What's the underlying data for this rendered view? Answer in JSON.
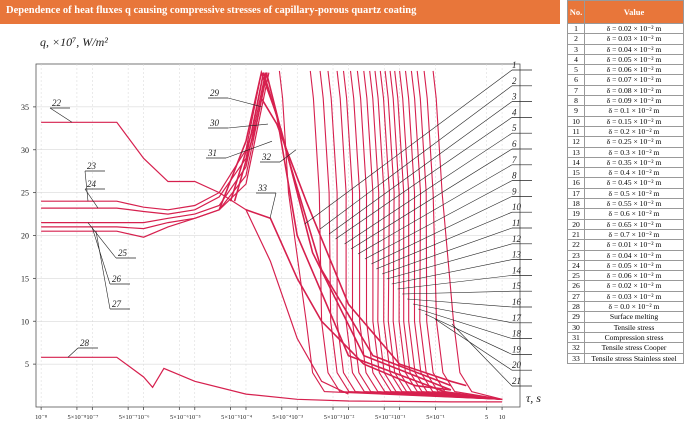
{
  "header": {
    "title": "Dependence of heat fluxes q causing compressive stresses of capillary-porous quartz coating",
    "col_no": "No.",
    "col_value": "Value"
  },
  "legend_rows": [
    {
      "no": "1",
      "value": "δ = 0.02 × 10⁻² m"
    },
    {
      "no": "2",
      "value": "δ = 0.03 × 10⁻² m"
    },
    {
      "no": "3",
      "value": "δ = 0.04 × 10⁻² m"
    },
    {
      "no": "4",
      "value": "δ = 0.05 × 10⁻² m"
    },
    {
      "no": "5",
      "value": "δ = 0.06 × 10⁻² m"
    },
    {
      "no": "6",
      "value": "δ = 0.07 × 10⁻² m"
    },
    {
      "no": "7",
      "value": "δ = 0.08 × 10⁻² m"
    },
    {
      "no": "8",
      "value": "δ = 0.09 × 10⁻² m"
    },
    {
      "no": "9",
      "value": "δ = 0.1 × 10⁻² m"
    },
    {
      "no": "10",
      "value": "δ = 0.15 × 10⁻² m"
    },
    {
      "no": "11",
      "value": "δ = 0.2 × 10⁻² m"
    },
    {
      "no": "12",
      "value": "δ = 0.25 × 10⁻² m"
    },
    {
      "no": "13",
      "value": "δ = 0.3 × 10⁻² m"
    },
    {
      "no": "14",
      "value": "δ = 0.35 × 10⁻² m"
    },
    {
      "no": "15",
      "value": "δ = 0.4 × 10⁻² m"
    },
    {
      "no": "16",
      "value": "δ = 0.45 × 10⁻² m"
    },
    {
      "no": "17",
      "value": "δ = 0.5 × 10⁻² m"
    },
    {
      "no": "18",
      "value": "δ = 0.55 × 10⁻² m"
    },
    {
      "no": "19",
      "value": "δ = 0.6 × 10⁻² m"
    },
    {
      "no": "20",
      "value": "δ = 0.65 × 10⁻² m"
    },
    {
      "no": "21",
      "value": "δ = 0.7 × 10⁻² m"
    },
    {
      "no": "22",
      "value": "δ = 0.01 × 10⁻² m"
    },
    {
      "no": "23",
      "value": "δ = 0.04 × 10⁻² m"
    },
    {
      "no": "24",
      "value": "δ = 0.05 × 10⁻² m"
    },
    {
      "no": "25",
      "value": "δ = 0.06 × 10⁻² m"
    },
    {
      "no": "26",
      "value": "δ = 0.02 × 10⁻² m"
    },
    {
      "no": "27",
      "value": "δ = 0.03 × 10⁻² m"
    },
    {
      "no": "28",
      "value": "δ = 0.0 × 10⁻² m"
    },
    {
      "no": "29",
      "value": "Surface melting"
    },
    {
      "no": "30",
      "value": "Tensile stress"
    },
    {
      "no": "31",
      "value": "Compression stress"
    },
    {
      "no": "32",
      "value": "Tensile stress Cooper"
    },
    {
      "no": "33",
      "value": "Tensile stress Stainless steel"
    }
  ],
  "chart_data": {
    "type": "line",
    "ylabel": "q, ×10⁷, W/m²",
    "xlabel": "τ, s",
    "x_scale": "log",
    "ylim": [
      0,
      40
    ],
    "yticks": [
      5,
      10,
      15,
      20,
      25,
      30,
      35
    ],
    "xticks": [
      "10⁻⁸",
      "5×10⁻⁸",
      "10⁻⁷",
      "5×10⁻⁷",
      "10⁻⁶",
      "5×10⁻⁶",
      "10⁻⁵",
      "5×10⁻⁵",
      "10⁻⁴",
      "5×10⁻⁴",
      "10⁻³",
      "5×10⁻³",
      "10⁻²",
      "5×10⁻²",
      "10⁻¹",
      "5×10⁻¹",
      "5",
      "10"
    ],
    "grid": true,
    "line_color": "#d6204e",
    "family_1_21": [
      {
        "label": "1",
        "peak_x": 0.00045,
        "tail_x": 0.002
      },
      {
        "label": "2",
        "peak_x": 0.0018,
        "tail_x": 0.004
      },
      {
        "label": "3",
        "peak_x": 0.0028,
        "tail_x": 0.006
      },
      {
        "label": "4",
        "peak_x": 0.004,
        "tail_x": 0.008
      },
      {
        "label": "5",
        "peak_x": 0.006,
        "tail_x": 0.012
      },
      {
        "label": "6",
        "peak_x": 0.008,
        "tail_x": 0.016
      },
      {
        "label": "7",
        "peak_x": 0.011,
        "tail_x": 0.022
      },
      {
        "label": "8",
        "peak_x": 0.015,
        "tail_x": 0.03
      },
      {
        "label": "9",
        "peak_x": 0.02,
        "tail_x": 0.04
      },
      {
        "label": "10",
        "peak_x": 0.026,
        "tail_x": 0.05
      },
      {
        "label": "11",
        "peak_x": 0.033,
        "tail_x": 0.065
      },
      {
        "label": "12",
        "peak_x": 0.042,
        "tail_x": 0.08
      },
      {
        "label": "13",
        "peak_x": 0.052,
        "tail_x": 0.1
      },
      {
        "label": "14",
        "peak_x": 0.065,
        "tail_x": 0.13
      },
      {
        "label": "15",
        "peak_x": 0.08,
        "tail_x": 0.16
      },
      {
        "label": "16",
        "peak_x": 0.1,
        "tail_x": 0.2
      },
      {
        "label": "17",
        "peak_x": 0.13,
        "tail_x": 0.26
      },
      {
        "label": "18",
        "peak_x": 0.17,
        "tail_x": 0.33
      },
      {
        "label": "19",
        "peak_x": 0.22,
        "tail_x": 0.45
      },
      {
        "label": "20",
        "peak_x": 0.3,
        "tail_x": 0.7
      },
      {
        "label": "21",
        "peak_x": 0.45,
        "tail_x": 1.5
      }
    ],
    "series_22_28": [
      {
        "label": "22",
        "points": [
          [
            1e-08,
            33.2
          ],
          [
            3e-07,
            33.2
          ],
          [
            1e-06,
            29
          ],
          [
            3e-06,
            26.3
          ],
          [
            1e-05,
            26.3
          ],
          [
            3e-05,
            25
          ],
          [
            0.0001,
            23
          ],
          [
            0.0003,
            17
          ],
          [
            0.001,
            8
          ],
          [
            0.003,
            3
          ],
          [
            0.01,
            1.5
          ]
        ]
      },
      {
        "label": "23",
        "points": [
          [
            1e-08,
            24
          ],
          [
            3e-07,
            24
          ],
          [
            1e-06,
            23.3
          ],
          [
            3e-06,
            23
          ],
          [
            1e-05,
            23.5
          ],
          [
            3e-05,
            25
          ],
          [
            0.0001,
            30
          ],
          [
            0.0002,
            39
          ]
        ]
      },
      {
        "label": "24",
        "points": [
          [
            1e-08,
            23.2
          ],
          [
            3e-07,
            23.2
          ],
          [
            1e-06,
            22.8
          ],
          [
            3e-06,
            22.5
          ],
          [
            1e-05,
            23
          ],
          [
            3e-05,
            24.5
          ],
          [
            0.0001,
            29
          ],
          [
            0.00022,
            39
          ]
        ]
      },
      {
        "label": "25",
        "points": [
          [
            1e-08,
            21.5
          ],
          [
            3e-07,
            21.5
          ],
          [
            1e-06,
            21.5
          ],
          [
            3e-06,
            22
          ],
          [
            1e-05,
            22.5
          ],
          [
            3e-05,
            23.5
          ],
          [
            0.0001,
            28
          ],
          [
            0.00024,
            39
          ]
        ]
      },
      {
        "label": "26",
        "points": [
          [
            1e-08,
            21
          ],
          [
            3e-07,
            21
          ],
          [
            1e-06,
            20.8
          ],
          [
            3e-06,
            21.5
          ],
          [
            1e-05,
            22
          ],
          [
            3e-05,
            23
          ],
          [
            0.0001,
            27
          ],
          [
            0.00026,
            39
          ]
        ]
      },
      {
        "label": "27",
        "points": [
          [
            1e-08,
            20.5
          ],
          [
            3e-07,
            20.5
          ],
          [
            1e-06,
            19.8
          ],
          [
            3e-06,
            21
          ],
          [
            1e-05,
            22
          ],
          [
            3e-05,
            23
          ],
          [
            0.0001,
            26
          ],
          [
            0.00028,
            39
          ]
        ]
      },
      {
        "label": "28",
        "points": [
          [
            1e-08,
            5.8
          ],
          [
            3e-07,
            5.8
          ],
          [
            1e-06,
            3.5
          ],
          [
            1.5e-06,
            2.3
          ],
          [
            2.5e-06,
            4.5
          ],
          [
            1e-05,
            3
          ],
          [
            0.0001,
            1.5
          ],
          [
            0.001,
            0.9
          ],
          [
            0.01,
            0.7
          ],
          [
            1,
            0.6
          ],
          [
            10,
            0.6
          ]
        ]
      }
    ],
    "series_29_33": [
      {
        "label": "29",
        "points": [
          [
            3e-05,
            23
          ],
          [
            0.0001,
            31
          ],
          [
            0.0002,
            39
          ],
          [
            0.0004,
            34
          ],
          [
            0.001,
            20
          ],
          [
            0.01,
            6
          ],
          [
            1,
            1.5
          ]
        ]
      },
      {
        "label": "30",
        "points": [
          [
            5e-05,
            24
          ],
          [
            0.00013,
            32
          ],
          [
            0.00022,
            39
          ],
          [
            0.0005,
            32
          ],
          [
            0.002,
            18
          ],
          [
            0.02,
            6
          ],
          [
            1,
            2
          ]
        ]
      },
      {
        "label": "31",
        "points": [
          [
            6e-05,
            24
          ],
          [
            0.00016,
            33
          ],
          [
            0.00025,
            39
          ],
          [
            0.0006,
            30
          ],
          [
            0.003,
            16
          ],
          [
            0.03,
            6
          ],
          [
            1,
            2.5
          ]
        ]
      },
      {
        "label": "32",
        "points": [
          [
            0.0002,
            36
          ],
          [
            0.0004,
            33
          ],
          [
            0.0015,
            24
          ],
          [
            0.01,
            12
          ],
          [
            0.1,
            5
          ],
          [
            1,
            3
          ],
          [
            2,
            2.5
          ]
        ]
      },
      {
        "label": "33",
        "points": [
          [
            0.0001,
            23
          ],
          [
            0.0003,
            22
          ],
          [
            0.001,
            15
          ],
          [
            0.003,
            10
          ],
          [
            0.02,
            5
          ],
          [
            0.2,
            2.5
          ],
          [
            1,
            2
          ]
        ]
      }
    ],
    "curve_labels": [
      "1",
      "2",
      "3",
      "4",
      "5",
      "6",
      "7",
      "8",
      "9",
      "10",
      "11",
      "12",
      "13",
      "14",
      "15",
      "16",
      "17",
      "18",
      "19",
      "20",
      "21",
      "22",
      "23",
      "24",
      "25",
      "26",
      "27",
      "28",
      "29",
      "30",
      "31",
      "32",
      "33"
    ]
  }
}
